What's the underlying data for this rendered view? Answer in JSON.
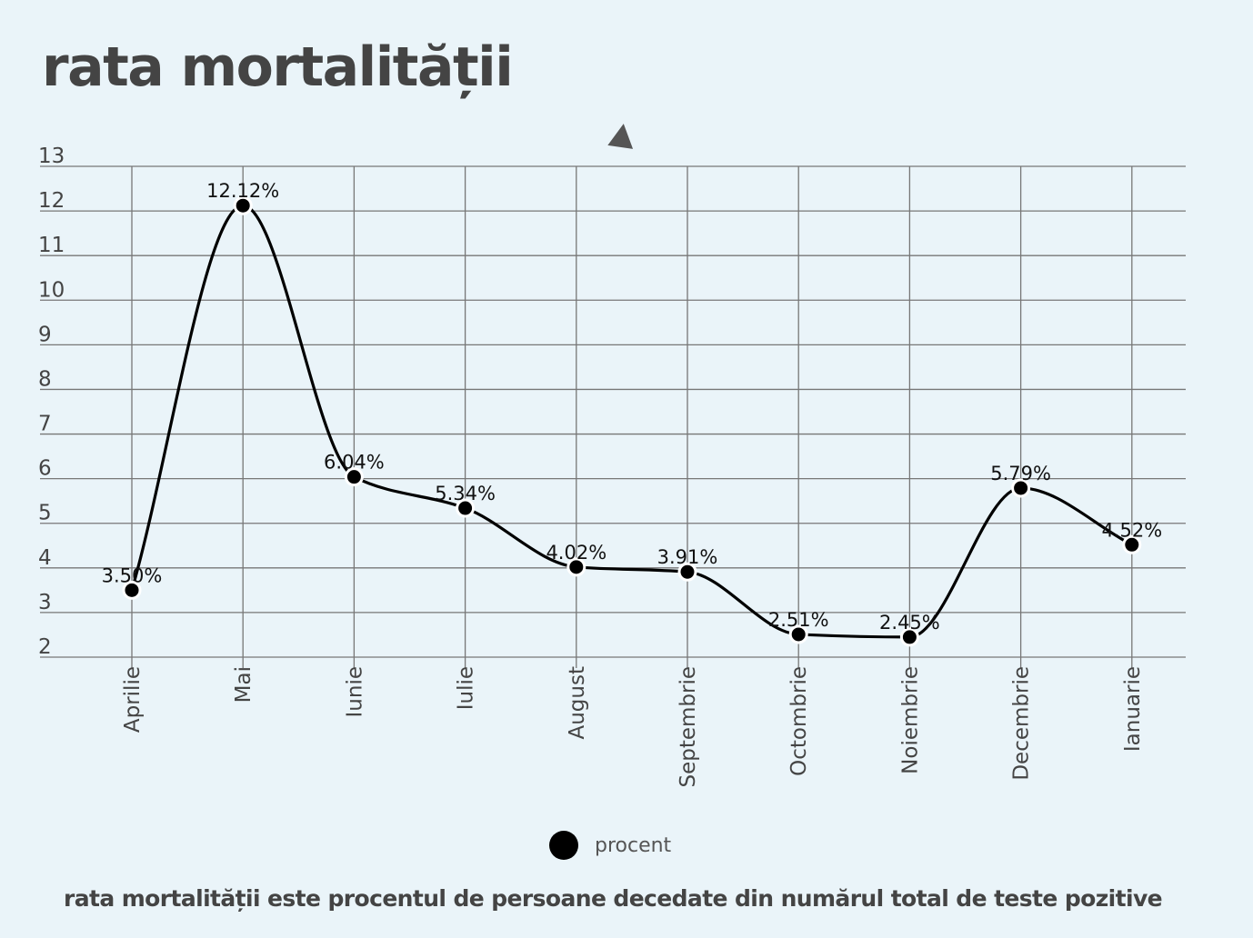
{
  "title": "rata mortalității",
  "footnote": "rata mortalității este procentul de persoane decedate din numărul total de teste pozitive",
  "legend": {
    "label": "procent"
  },
  "colors": {
    "background": "#eaf4f9",
    "grid": "#777777",
    "line": "#000000",
    "text": "#444444"
  },
  "chart_data": {
    "type": "line",
    "title": "rata mortalității",
    "xlabel": "",
    "ylabel": "",
    "categories": [
      "Aprilie",
      "Mai",
      "Iunie",
      "Iulie",
      "August",
      "Septembrie",
      "Octombrie",
      "Noiembrie",
      "Decembrie",
      "Ianuarie"
    ],
    "series": [
      {
        "name": "procent",
        "values": [
          3.5,
          12.12,
          6.04,
          5.34,
          4.02,
          3.91,
          2.51,
          2.45,
          5.79,
          4.52
        ],
        "labels": [
          "3.50%",
          "12.12%",
          "6.04%",
          "5.34%",
          "4.02%",
          "3.91%",
          "2.51%",
          "2.45%",
          "5.79%",
          "4.52%"
        ]
      }
    ],
    "ylim": [
      2,
      13
    ],
    "yticks": [
      2,
      3,
      4,
      5,
      6,
      7,
      8,
      9,
      10,
      11,
      12,
      13
    ],
    "grid": true,
    "smooth": true,
    "legend_position": "bottom-center"
  }
}
